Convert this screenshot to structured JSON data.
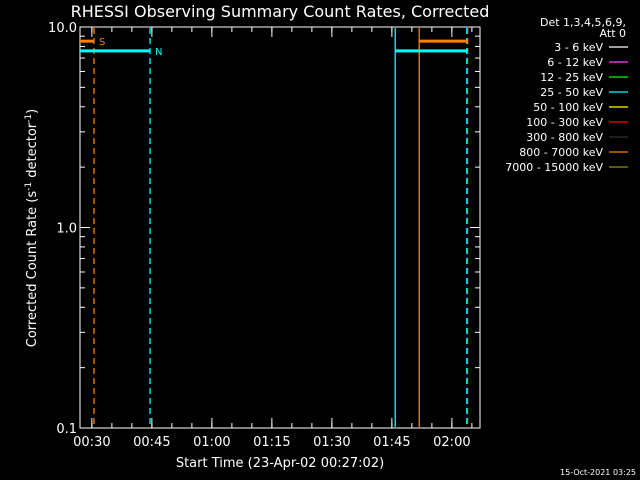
{
  "chart_data": {
    "type": "line",
    "title": "RHESSI Observing Summary Count Rates, Corrected",
    "xlabel": "Start Time (23-Apr-02 00:27:02)",
    "ylabel_main": "Corrected Count Rate (s",
    "ylabel_sup1": "-1",
    "ylabel_mid": " detector",
    "ylabel_sup2": "-1",
    "ylabel_end": ")",
    "yscale": "log",
    "ylim": [
      0.1,
      10.0
    ],
    "y_ticks": [
      "10.0",
      "1.0",
      "0.1"
    ],
    "xlim_minutes": [
      0,
      100
    ],
    "x_ticks": [
      "00:30",
      "00:45",
      "01:00",
      "01:15",
      "01:30",
      "01:45",
      "02:00"
    ],
    "x_tick_minutes": [
      2.97,
      17.97,
      32.97,
      47.97,
      62.97,
      77.97,
      92.97
    ],
    "grid": false,
    "detector_info": [
      "Det 1,3,4,5,6,9,",
      "Att 0"
    ],
    "legend_position": "right",
    "legend": [
      {
        "label": "3 - 6 keV",
        "color": "#ffffff"
      },
      {
        "label": "6 - 12 keV",
        "color": "#ff40ff"
      },
      {
        "label": "12 - 25 keV",
        "color": "#00ff00"
      },
      {
        "label": "25 - 50 keV",
        "color": "#00ffff"
      },
      {
        "label": "50 - 100 keV",
        "color": "#ffff00"
      },
      {
        "label": "100 - 300 keV",
        "color": "#ff0000"
      },
      {
        "label": "300 - 800 keV",
        "color": "#303030"
      },
      {
        "label": "800 - 7000 keV",
        "color": "#ff8000"
      },
      {
        "label": "7000 - 15000 keV",
        "color": "#909000"
      }
    ],
    "flag_bars": [
      {
        "label": "S",
        "color": "#ff8000",
        "y": 8.5,
        "segments": [
          [
            0,
            3.5
          ],
          [
            84.8,
            97.0
          ]
        ]
      },
      {
        "label": "N",
        "color": "#00ffff",
        "y": 7.6,
        "segments": [
          [
            0,
            17.5
          ],
          [
            78.8,
            97.0
          ]
        ]
      }
    ],
    "vertical_lines": [
      {
        "x": 3.5,
        "color": "#ff8000",
        "style": "dashed"
      },
      {
        "x": 17.5,
        "color": "#00ffff",
        "style": "dashed"
      },
      {
        "x": 78.8,
        "color": "#00ffff",
        "style": "solid"
      },
      {
        "x": 84.8,
        "color": "#ff8000",
        "style": "solid"
      },
      {
        "x": 96.7,
        "color": "#00ffff",
        "style": "dashed"
      },
      {
        "x": 96.9,
        "color": "#ff8000",
        "style": "dashed"
      }
    ]
  },
  "footer_stamp": "15-Oct-2021 03:25"
}
